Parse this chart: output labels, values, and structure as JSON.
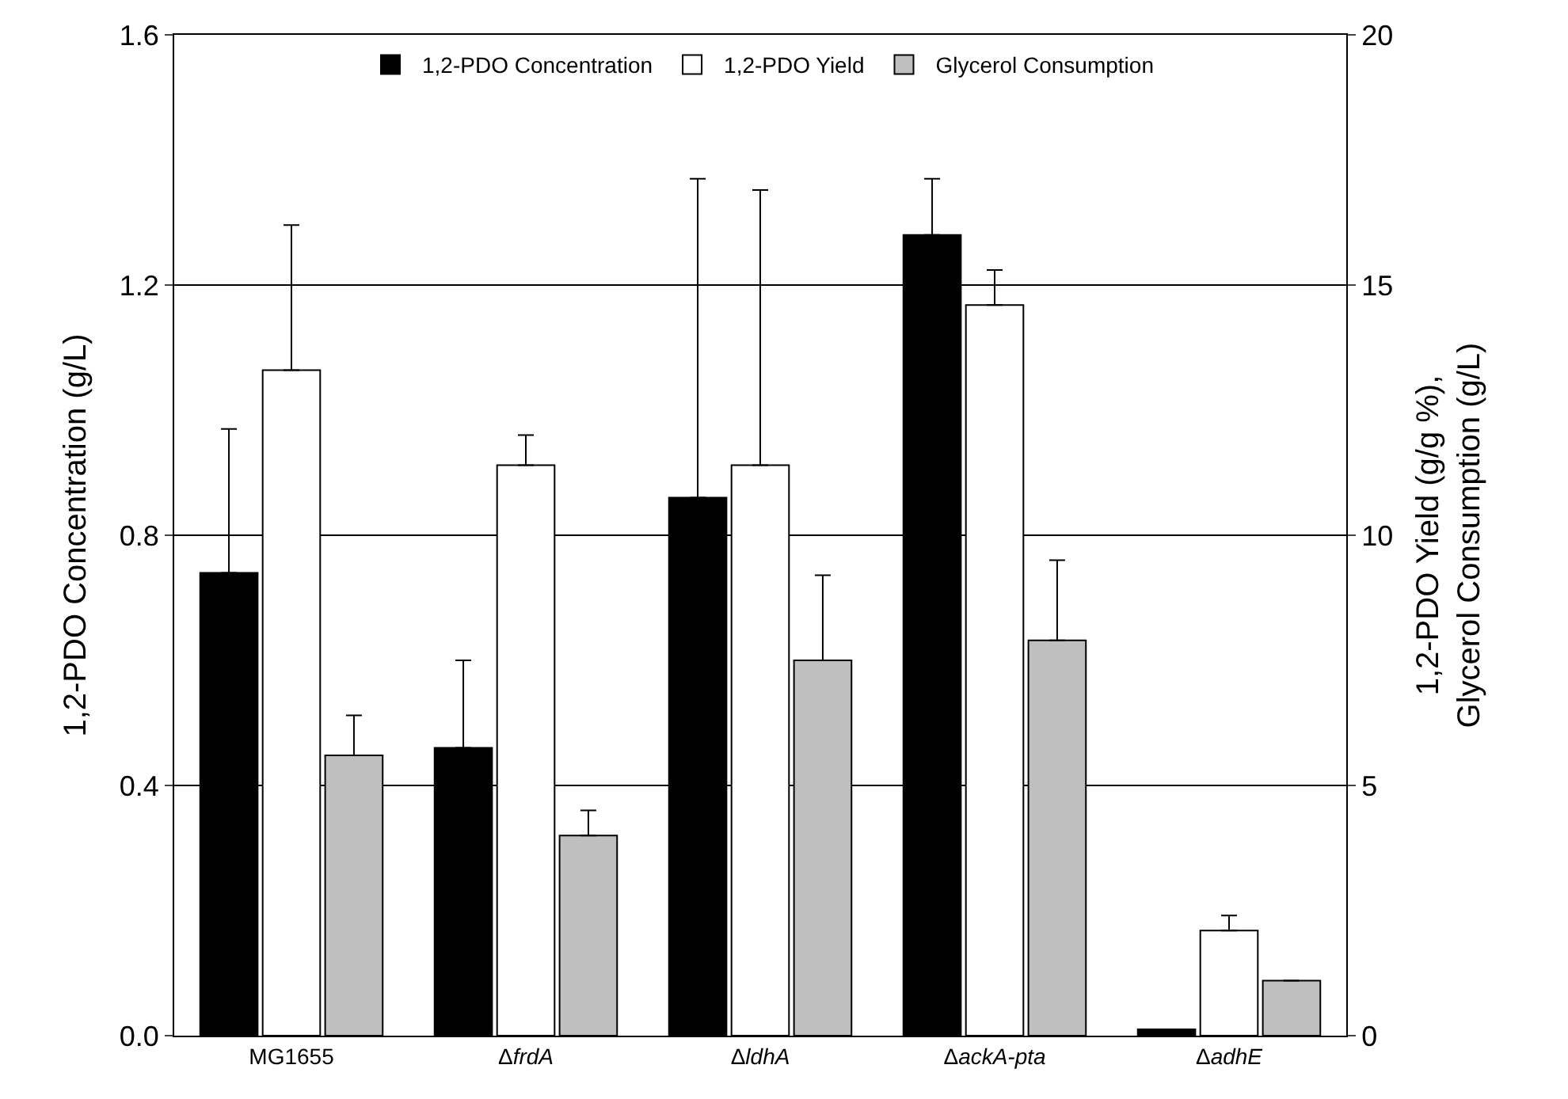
{
  "chart_data": {
    "type": "bar",
    "categories": [
      "MG1655",
      "ΔfrdA",
      "ΔldhA",
      "ΔackA-pta",
      "ΔadhE"
    ],
    "ylabel": "1,2-PDO Concentration (g/L)",
    "y2label": "1,2-PDO Yield (g/g %),\nGlycerol Consumption (g/L)",
    "ylim": [
      0,
      1.6
    ],
    "yticks": [
      {
        "value": 0,
        "label": "0.0"
      },
      0.4,
      0.8,
      1.2,
      1.6
    ],
    "y2lim": [
      0,
      20
    ],
    "y2ticks": [
      0,
      5,
      10,
      15,
      20
    ],
    "grid": "y",
    "legend": "top",
    "series": [
      {
        "name": "1,2-PDO Concentration",
        "color": "#000000",
        "values": [
          0.74,
          0.46,
          0.86,
          1.28,
          0.01
        ],
        "errors": [
          [
            0.74,
            0.97
          ],
          [
            0.46,
            0.6
          ],
          [
            0.86,
            1.37
          ],
          [
            1.28,
            1.37
          ],
          null
        ]
      },
      {
        "name": "1,2-PDO Yield",
        "color": "#ffffff",
        "axis": "y2",
        "values": [
          13.3,
          11.4,
          11.4,
          14.6,
          2.1
        ],
        "errors": [
          [
            13.3,
            16.2
          ],
          [
            11.4,
            12.0
          ],
          [
            11.4,
            16.9
          ],
          [
            14.6,
            15.3
          ],
          [
            2.1,
            2.4
          ]
        ]
      },
      {
        "name": "Glycerol Consumption",
        "color": "#bfbfbf",
        "axis": "y2",
        "values": [
          5.6,
          4.0,
          7.5,
          7.9,
          1.1
        ],
        "errors": [
          [
            5.6,
            6.4
          ],
          [
            4.0,
            4.5
          ],
          [
            7.5,
            9.2
          ],
          [
            7.9,
            9.5
          ],
          null
        ]
      }
    ]
  }
}
